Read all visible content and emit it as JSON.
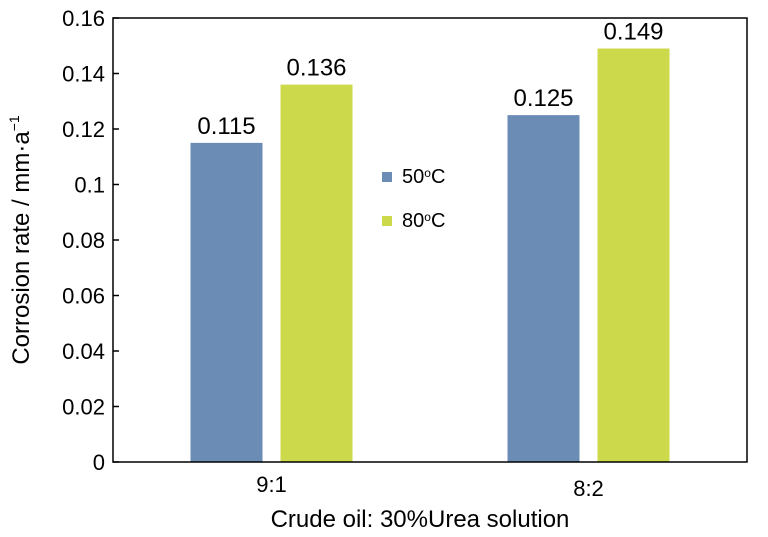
{
  "chart_data": {
    "type": "bar",
    "categories": [
      "9:1",
      "8:2"
    ],
    "series": [
      {
        "name": "50",
        "values": [
          0.115,
          0.125
        ],
        "color": "#6b8cb5"
      },
      {
        "name": "80",
        "values": [
          0.136,
          0.149
        ],
        "color": "#ccd94a"
      }
    ],
    "data_labels": [
      [
        "0.115",
        "0.125"
      ],
      [
        "0.136",
        "0.149"
      ]
    ],
    "xlabel": "Crude oil: 30%Urea solution",
    "ylabel": "Corrosion rate / mm·a",
    "ylabel_superscript": "−1",
    "ylim": [
      0,
      0.16
    ],
    "yticks": [
      0,
      0.02,
      0.04,
      0.06,
      0.08,
      0.1,
      0.12,
      0.14,
      0.16
    ],
    "ytick_labels": [
      "0",
      "0.02",
      "0.04",
      "0.06",
      "0.08",
      "0.1",
      "0.12",
      "0.14",
      "0.16"
    ],
    "legend": {
      "position": "center-right",
      "entries": [
        {
          "value": "50",
          "superscript": "o",
          "unit": "C"
        },
        {
          "value": "80",
          "superscript": "o",
          "unit": "C"
        }
      ]
    },
    "grid": false
  }
}
